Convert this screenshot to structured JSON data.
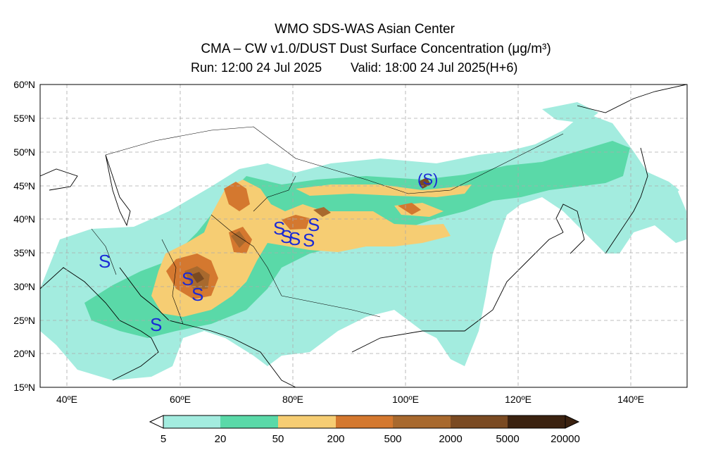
{
  "header": {
    "line1": "WMO SDS-WAS Asian Center",
    "line2": "CMA – CW v1.0/DUST Dust Surface Concentration (μg/m³)",
    "run": "Run: 12:00 24 Jul 2025",
    "valid": "Valid: 18:00 24 Jul 2025(H+6)"
  },
  "axes": {
    "lat_labels": [
      "60ºN",
      "55ºN",
      "50ºN",
      "45ºN",
      "40ºN",
      "35ºN",
      "30ºN",
      "25ºN",
      "20ºN",
      "15ºN"
    ],
    "lon_labels": [
      "40ºE",
      "60ºE",
      "80ºE",
      "100ºE",
      "120ºE",
      "140ºE"
    ]
  },
  "colorbar": {
    "labels": [
      "5",
      "20",
      "50",
      "200",
      "500",
      "2000",
      "5000",
      "20000"
    ],
    "colors": [
      "#a3ecdf",
      "#5ad9a8",
      "#f6cd73",
      "#d4782f",
      "#a8692e",
      "#7a4a22",
      "#3b2210"
    ]
  },
  "colors": {
    "very_light": "#a3ecdf",
    "light": "#5ad9a8",
    "moderate": "#f6cd73",
    "high": "#d4782f",
    "very_high": "#a8692e",
    "extreme": "#7a4a22",
    "max": "#3b2210",
    "dust_storm_symbol": "#1a2ad6"
  },
  "map": {
    "lon_range": [
      35,
      150
    ],
    "lat_range": [
      15,
      60
    ],
    "gridlines": true,
    "dust_symbols": [
      "S",
      "S",
      "S",
      "S",
      "S",
      "S",
      "S",
      "S",
      "S",
      "(S)"
    ]
  }
}
